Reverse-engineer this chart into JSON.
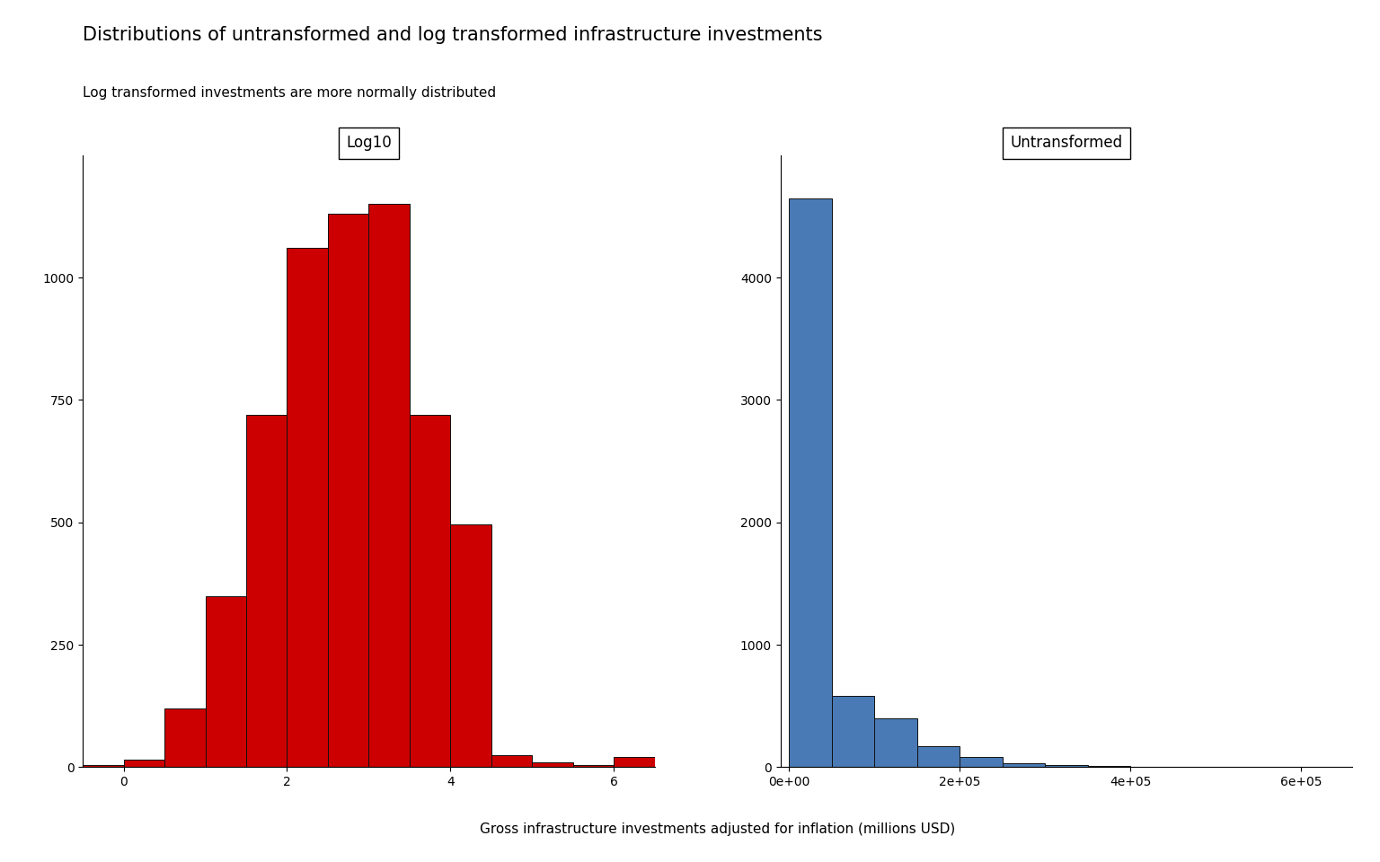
{
  "title": "Distributions of untransformed and log transformed infrastructure investments",
  "subtitle": "Log transformed investments are more normally distributed",
  "xlabel": "Gross infrastructure investments adjusted for inflation (millions USD)",
  "left_panel_title": "Log10",
  "right_panel_title": "Untransformed",
  "log_bin_edges": [
    -0.5,
    0.0,
    0.5,
    1.0,
    1.5,
    2.0,
    2.5,
    3.0,
    3.5,
    4.0,
    4.5,
    5.0,
    5.5,
    6.0,
    6.5
  ],
  "log_counts": [
    5,
    15,
    120,
    350,
    720,
    1060,
    1130,
    1150,
    720,
    495,
    25,
    10,
    5,
    20
  ],
  "untr_bin_edges": [
    0,
    50000,
    100000,
    150000,
    200000,
    250000,
    300000,
    350000,
    400000,
    450000,
    500000,
    550000,
    600000,
    650000
  ],
  "untr_counts": [
    4650,
    580,
    400,
    175,
    80,
    30,
    15,
    8,
    5,
    3,
    2,
    2,
    2
  ],
  "log_color": "#cc0000",
  "untr_color": "#4a7ab5",
  "log_xlim": [
    -0.5,
    6.5
  ],
  "log_ylim": [
    0,
    1250
  ],
  "untr_xlim": [
    -10000,
    660000
  ],
  "untr_ylim": [
    0,
    5000
  ],
  "log_xticks": [
    0,
    2,
    4,
    6
  ],
  "untr_xticks": [
    0,
    200000,
    400000,
    600000
  ],
  "log_yticks": [
    0,
    250,
    500,
    750,
    1000
  ],
  "untr_yticks": [
    0,
    1000,
    2000,
    3000,
    4000
  ],
  "title_fontsize": 15,
  "subtitle_fontsize": 11,
  "axis_label_fontsize": 11,
  "tick_fontsize": 10,
  "panel_title_fontsize": 12,
  "background_color": "#ffffff",
  "edgecolor": "#111111"
}
